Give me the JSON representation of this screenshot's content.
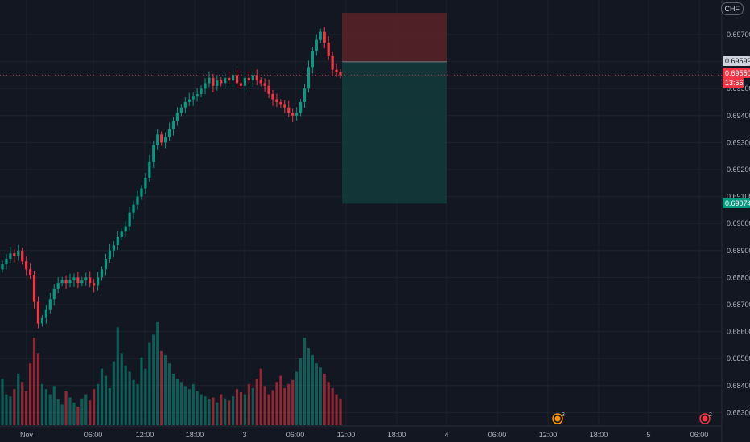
{
  "chart_data": {
    "type": "candlestick",
    "price_axis": {
      "ticks": [
        "0.69700",
        "0.69600",
        "0.69500",
        "0.69400",
        "0.69300",
        "0.69200",
        "0.69100",
        "0.69000",
        "0.68900",
        "0.68800",
        "0.68700",
        "0.68600",
        "0.68500",
        "0.68400",
        "0.68300"
      ],
      "range": [
        0.6827,
        0.6978
      ]
    },
    "time_axis": {
      "labels": [
        "Nov",
        "06:00",
        "12:00",
        "18:00",
        "3",
        "06:00",
        "12:00",
        "18:00",
        "4",
        "06:00",
        "12:00",
        "18:00",
        "5",
        "06:00"
      ]
    },
    "currency_button": "CHF",
    "price_tags": [
      {
        "value": "0.69599",
        "color": "#d1d4dc",
        "text_color": "#131722"
      },
      {
        "value": "0.69550",
        "color": "#f23645",
        "text_color": "#ffffff"
      },
      {
        "value": "13:56",
        "color": "#f23645",
        "text_color": "#ffffff"
      },
      {
        "value": "0.69074",
        "color": "#089981",
        "text_color": "#ffffff"
      }
    ],
    "position_tool": {
      "entry": 0.69599,
      "stop": 0.6978,
      "target": 0.69074,
      "stop_color": "#5b2327",
      "target_color": "#133a3a"
    },
    "last_price": 0.6955,
    "colors": {
      "up": "#089981",
      "down": "#f23645",
      "background": "#131722",
      "grid": "#1e222d"
    },
    "events": [
      {
        "badge": "3",
        "time_label": "12:00",
        "color": "#ff9800"
      },
      {
        "badge": "2",
        "time_label": "06:00",
        "color": "#f23645"
      }
    ],
    "series_close": [
      0.6885,
      0.6887,
      0.6889,
      0.6888,
      0.689,
      0.6886,
      0.6883,
      0.6881,
      0.6871,
      0.6863,
      0.6865,
      0.6868,
      0.6872,
      0.6876,
      0.6878,
      0.6879,
      0.6878,
      0.6879,
      0.688,
      0.6878,
      0.6879,
      0.688,
      0.6878,
      0.6877,
      0.688,
      0.6883,
      0.6887,
      0.689,
      0.6892,
      0.6895,
      0.6897,
      0.6899,
      0.6904,
      0.6907,
      0.691,
      0.6913,
      0.6917,
      0.6923,
      0.6929,
      0.6933,
      0.693,
      0.6932,
      0.6935,
      0.6938,
      0.6941,
      0.6943,
      0.6945,
      0.6946,
      0.6947,
      0.6948,
      0.695,
      0.6952,
      0.6954,
      0.6951,
      0.6953,
      0.6952,
      0.6954,
      0.6953,
      0.6955,
      0.6952,
      0.6951,
      0.6954,
      0.6953,
      0.6955,
      0.6953,
      0.6952,
      0.6951,
      0.6948,
      0.6946,
      0.6945,
      0.6944,
      0.6943,
      0.6941,
      0.694,
      0.6941,
      0.6945,
      0.695,
      0.6958,
      0.6964,
      0.6968,
      0.6971,
      0.6967,
      0.6962,
      0.6957,
      0.6956,
      0.6955
    ],
    "series_volume": [
      0.45,
      0.3,
      0.28,
      0.35,
      0.5,
      0.42,
      0.33,
      0.6,
      0.85,
      0.7,
      0.4,
      0.35,
      0.3,
      0.38,
      0.25,
      0.2,
      0.33,
      0.27,
      0.22,
      0.18,
      0.26,
      0.3,
      0.24,
      0.35,
      0.4,
      0.55,
      0.48,
      0.36,
      0.62,
      0.95,
      0.7,
      0.58,
      0.52,
      0.44,
      0.4,
      0.66,
      0.55,
      0.8,
      0.88,
      1.0,
      0.72,
      0.68,
      0.6,
      0.5,
      0.45,
      0.42,
      0.38,
      0.35,
      0.4,
      0.33,
      0.3,
      0.28,
      0.25,
      0.27,
      0.22,
      0.3,
      0.26,
      0.24,
      0.28,
      0.35,
      0.32,
      0.3,
      0.4,
      0.36,
      0.45,
      0.55,
      0.38,
      0.3,
      0.34,
      0.42,
      0.48,
      0.36,
      0.4,
      0.44,
      0.52,
      0.65,
      0.85,
      0.75,
      0.68,
      0.6,
      0.56,
      0.5,
      0.42,
      0.36,
      0.3,
      0.26
    ]
  }
}
